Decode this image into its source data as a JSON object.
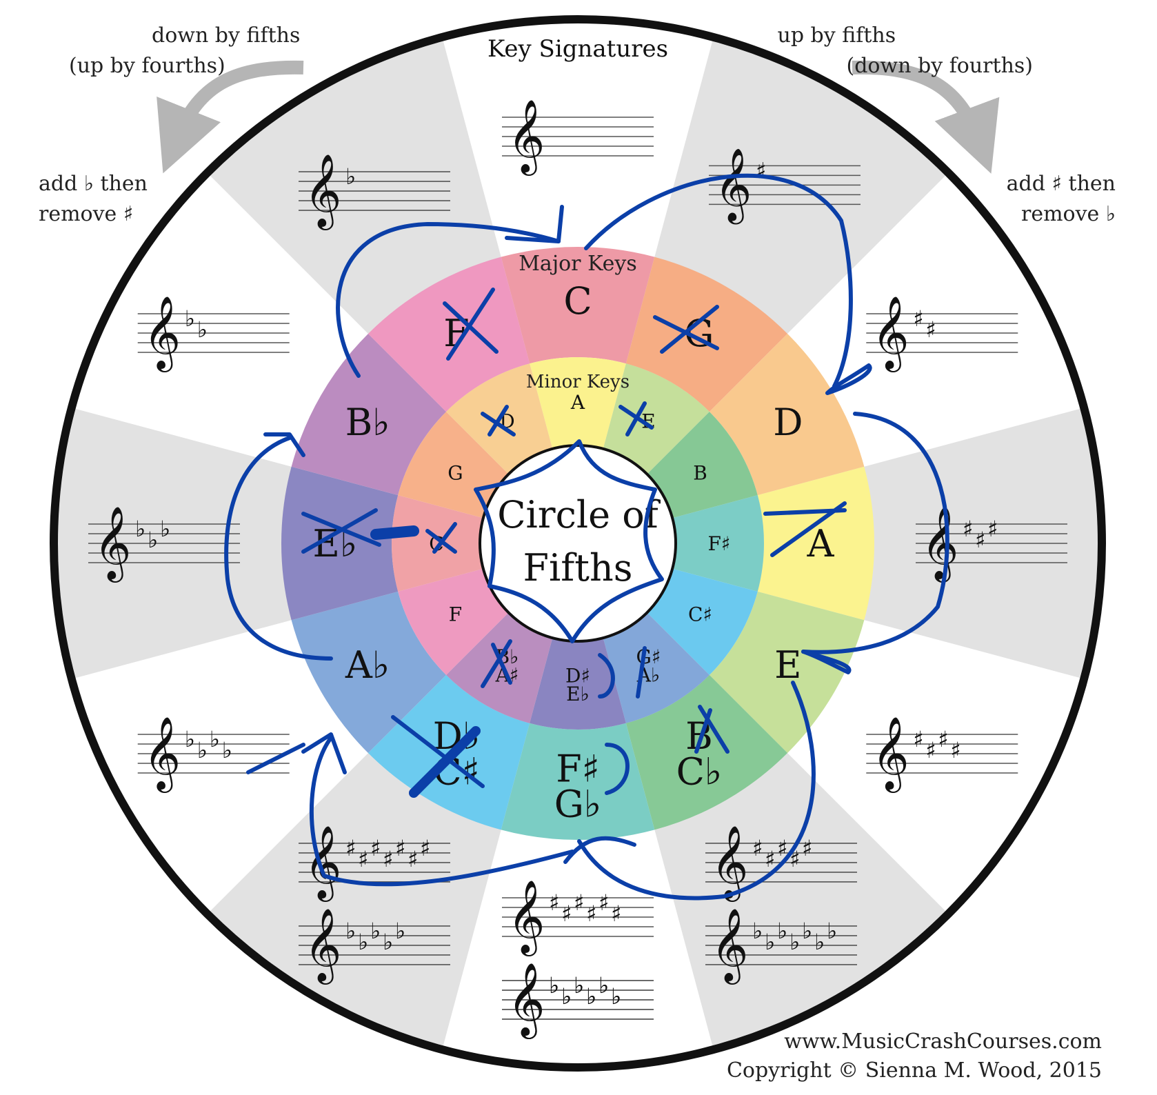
{
  "title": "Key Signatures",
  "direction_labels": {
    "down": [
      "down by fifths",
      "(up by fourths)"
    ],
    "up": [
      "up by fifths",
      "(down by fourths)"
    ],
    "add_flat": [
      "add ♭ then",
      "remove ♯"
    ],
    "add_sharp": [
      "add ♯ then",
      "remove ♭"
    ]
  },
  "major_ring_label": "Major Keys",
  "minor_ring_label": "Minor Keys",
  "center_label": [
    "Circle of",
    "Fifths"
  ],
  "major_keys": [
    {
      "label": [
        "C"
      ],
      "color": "#ee9aa6"
    },
    {
      "label": [
        "G"
      ],
      "color": "#f6ad84"
    },
    {
      "label": [
        "D"
      ],
      "color": "#f9c98e"
    },
    {
      "label": [
        "A"
      ],
      "color": "#fbf38f"
    },
    {
      "label": [
        "E"
      ],
      "color": "#c6e09a"
    },
    {
      "label": [
        "B",
        "C♭"
      ],
      "color": "#87c996"
    },
    {
      "label": [
        "F♯",
        "G♭"
      ],
      "color": "#7bcdc4"
    },
    {
      "label": [
        "D♭",
        "C♯"
      ],
      "color": "#6ccbef"
    },
    {
      "label": [
        "A♭"
      ],
      "color": "#84a9da"
    },
    {
      "label": [
        "E♭"
      ],
      "color": "#8b87c2"
    },
    {
      "label": [
        "B♭"
      ],
      "color": "#bb8cc0"
    },
    {
      "label": [
        "F"
      ],
      "color": "#ef98c0"
    }
  ],
  "minor_keys": [
    {
      "label": [
        "A"
      ],
      "color": "#fbf28e"
    },
    {
      "label": [
        "E"
      ],
      "color": "#c5df9b"
    },
    {
      "label": [
        "B"
      ],
      "color": "#86c895"
    },
    {
      "label": [
        "F♯"
      ],
      "color": "#7ccdc6"
    },
    {
      "label": [
        "C♯"
      ],
      "color": "#6bc9ef"
    },
    {
      "label": [
        "G♯",
        "A♭"
      ],
      "color": "#83a7d9"
    },
    {
      "label": [
        "D♯",
        "E♭"
      ],
      "color": "#8a85c1"
    },
    {
      "label": [
        "B♭",
        "A♯"
      ],
      "color": "#ba8ebf"
    },
    {
      "label": [
        "F"
      ],
      "color": "#ee9ac0"
    },
    {
      "label": [
        "C"
      ],
      "color": "#f0a2a6"
    },
    {
      "label": [
        "G"
      ],
      "color": "#f7b18a"
    },
    {
      "label": [
        "D"
      ],
      "color": "#f8cf93"
    }
  ],
  "key_signatures": [
    {
      "sharps": 0,
      "flats": 0
    },
    {
      "sharps": 1,
      "flats": 0
    },
    {
      "sharps": 2,
      "flats": 0
    },
    {
      "sharps": 3,
      "flats": 0
    },
    {
      "sharps": 4,
      "flats": 0
    },
    {
      "sharps": 5,
      "flats": 7
    },
    {
      "sharps": 6,
      "flats": 6
    },
    {
      "sharps": 7,
      "flats": 5
    },
    {
      "sharps": 0,
      "flats": 4
    },
    {
      "sharps": 0,
      "flats": 3
    },
    {
      "sharps": 0,
      "flats": 2
    },
    {
      "sharps": 0,
      "flats": 1
    }
  ],
  "ink_color": "#0b3fa8",
  "footer": [
    "www.MusicCrashCourses.com",
    "Copyright © Sienna M. Wood, 2015"
  ]
}
